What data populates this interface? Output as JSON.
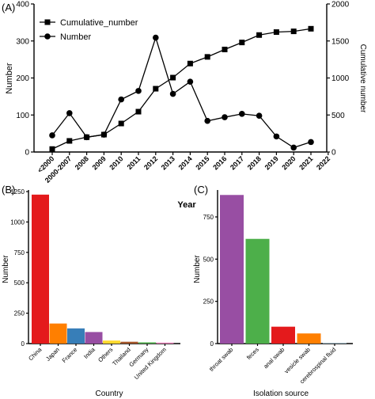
{
  "chart_data": [
    {
      "panel": "(A)",
      "type": "line",
      "x": [
        "<2000",
        "2000-2007",
        "2008",
        "2009",
        "2010",
        "2011",
        "2012",
        "2013",
        "2014",
        "2015",
        "2016",
        "2017",
        "2018",
        "2019",
        "2020",
        "2021",
        "2022"
      ],
      "xlabel": "Year",
      "ylabel": "Number",
      "y2label": "Cumulative number",
      "ylim": [
        0,
        400
      ],
      "y2lim": [
        0,
        2000
      ],
      "yticks": [
        0,
        100,
        200,
        300,
        400
      ],
      "y2ticks": [
        0,
        500,
        1000,
        1500,
        2000
      ],
      "legend": "top-left",
      "series": [
        {
          "name": "Cumulative_number",
          "marker": "square",
          "axis": "right",
          "values": [
            40,
            150,
            200,
            235,
            385,
            545,
            855,
            1005,
            1195,
            1285,
            1385,
            1480,
            1580,
            1620,
            1630,
            1665,
            null
          ]
        },
        {
          "name": "Number",
          "marker": "circle",
          "axis": "left",
          "values": [
            45,
            105,
            40,
            47,
            142,
            165,
            309,
            157,
            190,
            84,
            94,
            103,
            98,
            42,
            12,
            27,
            null
          ]
        }
      ]
    },
    {
      "panel": "(B)",
      "type": "bar",
      "categories": [
        "China",
        "Japan",
        "France",
        "India",
        "Others",
        "Thailand",
        "Germany",
        "United Kingdom"
      ],
      "values": [
        1225,
        165,
        125,
        95,
        25,
        15,
        10,
        8
      ],
      "colors": [
        "#e41a1c",
        "#ff7f00",
        "#377eb8",
        "#984ea3",
        "#ffd92f",
        "#a65628",
        "#4daf4a",
        "#f781bf"
      ],
      "xlabel": "Country",
      "ylabel": "Number",
      "ylim": [
        0,
        1250
      ],
      "yticks": [
        0,
        250,
        500,
        750,
        1000,
        1250
      ]
    },
    {
      "panel": "(C)",
      "type": "bar",
      "categories": [
        "throat swab",
        "feces",
        "anal swab",
        "vesicle swab",
        "cerebrospinal fluid"
      ],
      "values": [
        880,
        620,
        100,
        60,
        3
      ],
      "colors": [
        "#984ea3",
        "#4daf4a",
        "#e41a1c",
        "#ff7f00",
        "#a6cee3"
      ],
      "xlabel": "Isolation source",
      "ylabel": "Number",
      "ylim": [
        0,
        900
      ],
      "yticks": [
        0,
        250,
        500,
        750
      ]
    }
  ]
}
